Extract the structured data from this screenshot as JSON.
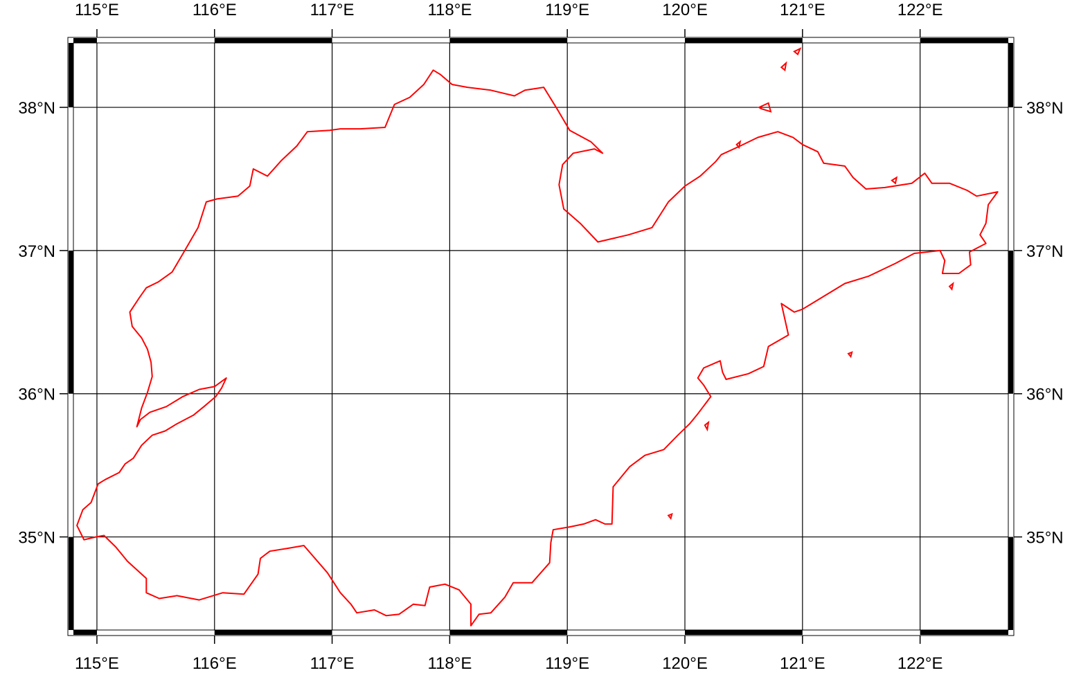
{
  "map": {
    "bounds": {
      "lon_min": 114.8,
      "lon_max": 122.75,
      "lat_min": 34.35,
      "lat_max": 38.45
    },
    "boundary_color": "#ff0000",
    "grid_color": "#000000",
    "frame_style": "fancy (alternating black/white bars)"
  },
  "graticule": {
    "lon_ticks": [
      {
        "value": 115,
        "label": "115°E"
      },
      {
        "value": 116,
        "label": "116°E"
      },
      {
        "value": 117,
        "label": "117°E"
      },
      {
        "value": 118,
        "label": "118°E"
      },
      {
        "value": 119,
        "label": "119°E"
      },
      {
        "value": 120,
        "label": "120°E"
      },
      {
        "value": 121,
        "label": "121°E"
      },
      {
        "value": 122,
        "label": "122°E"
      }
    ],
    "lat_ticks": [
      {
        "value": 35,
        "label": "35°N"
      },
      {
        "value": 36,
        "label": "36°N"
      },
      {
        "value": 37,
        "label": "37°N"
      },
      {
        "value": 38,
        "label": "38°N"
      }
    ]
  },
  "boundary": {
    "mainland": [
      [
        114.83,
        35.08
      ],
      [
        114.88,
        35.19
      ],
      [
        114.95,
        35.24
      ],
      [
        115.01,
        35.37
      ],
      [
        115.07,
        35.4
      ],
      [
        115.19,
        35.45
      ],
      [
        115.24,
        35.51
      ],
      [
        115.31,
        35.55
      ],
      [
        115.38,
        35.64
      ],
      [
        115.47,
        35.71
      ],
      [
        115.58,
        35.74
      ],
      [
        115.68,
        35.79
      ],
      [
        115.82,
        35.85
      ],
      [
        115.91,
        35.91
      ],
      [
        116.01,
        35.98
      ],
      [
        116.06,
        36.04
      ],
      [
        116.1,
        36.11
      ],
      [
        116.0,
        36.05
      ],
      [
        115.87,
        36.03
      ],
      [
        115.73,
        35.98
      ],
      [
        115.59,
        35.91
      ],
      [
        115.45,
        35.87
      ],
      [
        115.37,
        35.82
      ],
      [
        115.34,
        35.77
      ],
      [
        115.38,
        35.9
      ],
      [
        115.43,
        36.01
      ],
      [
        115.47,
        36.12
      ],
      [
        115.46,
        36.22
      ],
      [
        115.43,
        36.31
      ],
      [
        115.38,
        36.39
      ],
      [
        115.3,
        36.47
      ],
      [
        115.28,
        36.57
      ],
      [
        115.36,
        36.67
      ],
      [
        115.42,
        36.74
      ],
      [
        115.52,
        36.78
      ],
      [
        115.64,
        36.85
      ],
      [
        115.74,
        36.99
      ],
      [
        115.86,
        37.16
      ],
      [
        115.93,
        37.34
      ],
      [
        116.02,
        37.36
      ],
      [
        116.2,
        37.38
      ],
      [
        116.3,
        37.45
      ],
      [
        116.33,
        37.57
      ],
      [
        116.45,
        37.52
      ],
      [
        116.57,
        37.63
      ],
      [
        116.7,
        37.73
      ],
      [
        116.79,
        37.83
      ],
      [
        116.98,
        37.84
      ],
      [
        117.07,
        37.85
      ],
      [
        117.24,
        37.85
      ],
      [
        117.45,
        37.86
      ],
      [
        117.53,
        38.02
      ],
      [
        117.66,
        38.07
      ],
      [
        117.78,
        38.16
      ],
      [
        117.86,
        38.26
      ],
      [
        117.92,
        38.23
      ],
      [
        118.02,
        38.16
      ],
      [
        118.15,
        38.14
      ],
      [
        118.35,
        38.12
      ],
      [
        118.55,
        38.08
      ],
      [
        118.64,
        38.12
      ],
      [
        118.8,
        38.14
      ],
      [
        118.92,
        37.98
      ],
      [
        119.02,
        37.84
      ],
      [
        119.2,
        37.76
      ],
      [
        119.3,
        37.68
      ],
      [
        119.23,
        37.71
      ],
      [
        119.05,
        37.68
      ],
      [
        118.96,
        37.6
      ],
      [
        118.93,
        37.46
      ],
      [
        118.97,
        37.29
      ],
      [
        119.11,
        37.19
      ],
      [
        119.26,
        37.06
      ],
      [
        119.52,
        37.11
      ],
      [
        119.72,
        37.16
      ],
      [
        119.86,
        37.34
      ],
      [
        120.0,
        37.45
      ],
      [
        120.13,
        37.52
      ],
      [
        120.26,
        37.62
      ],
      [
        120.31,
        37.67
      ],
      [
        120.47,
        37.73
      ],
      [
        120.62,
        37.79
      ],
      [
        120.79,
        37.83
      ],
      [
        120.92,
        37.79
      ],
      [
        121.0,
        37.74
      ],
      [
        121.13,
        37.69
      ],
      [
        121.18,
        37.61
      ],
      [
        121.36,
        37.59
      ],
      [
        121.43,
        37.51
      ],
      [
        121.54,
        37.43
      ],
      [
        121.7,
        37.44
      ],
      [
        121.93,
        37.47
      ],
      [
        122.04,
        37.54
      ],
      [
        122.1,
        37.47
      ],
      [
        122.25,
        37.47
      ],
      [
        122.4,
        37.42
      ],
      [
        122.48,
        37.38
      ],
      [
        122.66,
        37.41
      ],
      [
        122.58,
        37.32
      ],
      [
        122.56,
        37.19
      ],
      [
        122.51,
        37.11
      ],
      [
        122.56,
        37.05
      ],
      [
        122.42,
        36.99
      ],
      [
        122.43,
        36.9
      ],
      [
        122.33,
        36.84
      ],
      [
        122.19,
        36.84
      ],
      [
        122.21,
        36.93
      ],
      [
        122.17,
        37.0
      ],
      [
        122.06,
        36.99
      ],
      [
        121.95,
        36.98
      ],
      [
        121.79,
        36.91
      ],
      [
        121.56,
        36.82
      ],
      [
        121.36,
        36.77
      ],
      [
        121.1,
        36.64
      ],
      [
        121.0,
        36.59
      ],
      [
        120.93,
        36.57
      ],
      [
        120.82,
        36.63
      ],
      [
        120.88,
        36.41
      ],
      [
        120.71,
        36.33
      ],
      [
        120.67,
        36.19
      ],
      [
        120.54,
        36.14
      ],
      [
        120.35,
        36.1
      ],
      [
        120.32,
        36.15
      ],
      [
        120.3,
        36.23
      ],
      [
        120.16,
        36.18
      ],
      [
        120.11,
        36.11
      ],
      [
        120.16,
        36.06
      ],
      [
        120.22,
        35.98
      ],
      [
        120.11,
        35.86
      ],
      [
        120.04,
        35.79
      ],
      [
        119.94,
        35.71
      ],
      [
        119.82,
        35.61
      ],
      [
        119.66,
        35.57
      ],
      [
        119.53,
        35.49
      ],
      [
        119.39,
        35.35
      ],
      [
        119.38,
        35.09
      ],
      [
        119.32,
        35.09
      ],
      [
        119.24,
        35.12
      ],
      [
        119.14,
        35.09
      ],
      [
        119.02,
        35.07
      ],
      [
        118.88,
        35.05
      ],
      [
        118.86,
        34.96
      ],
      [
        118.85,
        34.82
      ],
      [
        118.7,
        34.68
      ],
      [
        118.54,
        34.68
      ],
      [
        118.47,
        34.58
      ],
      [
        118.35,
        34.47
      ],
      [
        118.25,
        34.46
      ],
      [
        118.18,
        34.38
      ],
      [
        118.18,
        34.53
      ],
      [
        118.08,
        34.63
      ],
      [
        117.96,
        34.67
      ],
      [
        117.83,
        34.65
      ],
      [
        117.79,
        34.52
      ],
      [
        117.69,
        34.53
      ],
      [
        117.57,
        34.46
      ],
      [
        117.46,
        34.45
      ],
      [
        117.36,
        34.49
      ],
      [
        117.21,
        34.47
      ],
      [
        117.16,
        34.53
      ],
      [
        117.07,
        34.61
      ],
      [
        116.96,
        34.75
      ],
      [
        116.76,
        34.94
      ],
      [
        116.62,
        34.92
      ],
      [
        116.47,
        34.9
      ],
      [
        116.39,
        34.85
      ],
      [
        116.37,
        34.74
      ],
      [
        116.25,
        34.6
      ],
      [
        116.07,
        34.61
      ],
      [
        115.87,
        34.56
      ],
      [
        115.68,
        34.59
      ],
      [
        115.53,
        34.57
      ],
      [
        115.42,
        34.61
      ],
      [
        115.42,
        34.71
      ],
      [
        115.26,
        34.83
      ],
      [
        115.21,
        34.88
      ],
      [
        115.16,
        34.93
      ],
      [
        115.06,
        35.01
      ],
      [
        114.99,
        35.0
      ],
      [
        114.89,
        34.98
      ],
      [
        114.83,
        35.08
      ]
    ],
    "islands": [
      [
        [
          120.93,
          38.39
        ],
        [
          120.98,
          38.41
        ],
        [
          120.96,
          38.37
        ],
        [
          120.93,
          38.39
        ]
      ],
      [
        [
          120.82,
          38.28
        ],
        [
          120.86,
          38.31
        ],
        [
          120.85,
          38.26
        ],
        [
          120.82,
          38.28
        ]
      ],
      [
        [
          120.63,
          38.0
        ],
        [
          120.71,
          38.03
        ],
        [
          120.73,
          37.97
        ],
        [
          120.65,
          37.99
        ],
        [
          120.63,
          38.0
        ]
      ],
      [
        [
          120.44,
          37.74
        ],
        [
          120.47,
          37.76
        ],
        [
          120.46,
          37.72
        ],
        [
          120.44,
          37.74
        ]
      ],
      [
        [
          119.86,
          35.15
        ],
        [
          119.89,
          35.16
        ],
        [
          119.88,
          35.13
        ],
        [
          119.86,
          35.15
        ]
      ],
      [
        [
          120.17,
          35.78
        ],
        [
          120.2,
          35.8
        ],
        [
          120.19,
          35.75
        ],
        [
          120.17,
          35.78
        ]
      ],
      [
        [
          121.39,
          36.28
        ],
        [
          121.42,
          36.29
        ],
        [
          121.41,
          36.26
        ],
        [
          121.39,
          36.28
        ]
      ],
      [
        [
          122.25,
          36.75
        ],
        [
          122.28,
          36.77
        ],
        [
          122.27,
          36.73
        ],
        [
          122.25,
          36.75
        ]
      ],
      [
        [
          121.76,
          37.49
        ],
        [
          121.8,
          37.51
        ],
        [
          121.79,
          37.47
        ],
        [
          121.76,
          37.49
        ]
      ]
    ]
  }
}
